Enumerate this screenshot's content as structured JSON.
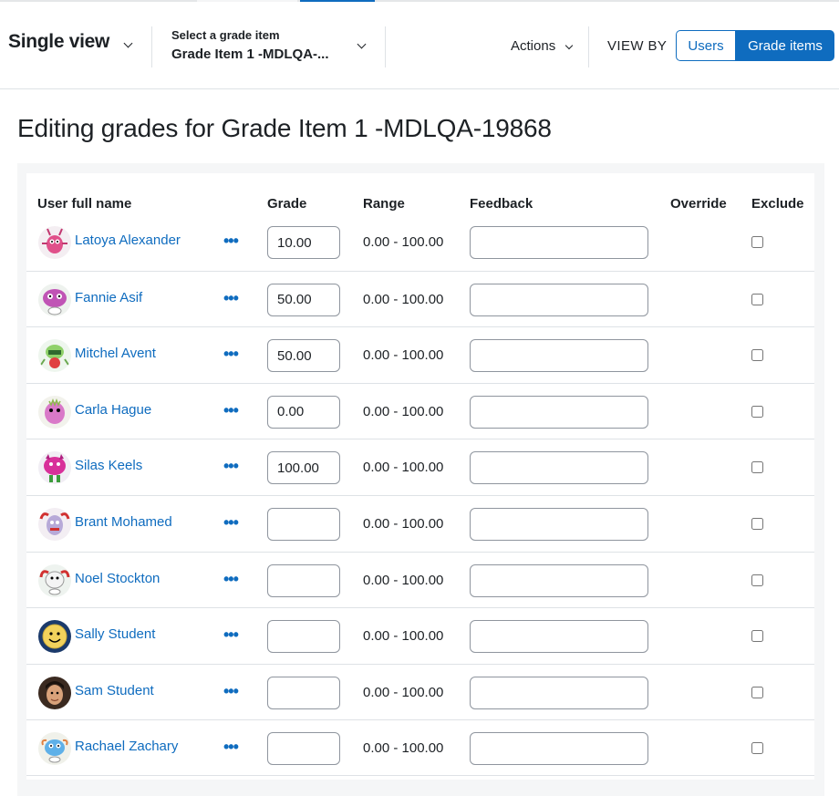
{
  "header": {
    "single_view": "Single view",
    "grade_item_label": "Select a grade item",
    "grade_item_value": "Grade Item 1 -MDLQA-...",
    "actions": "Actions",
    "view_by": "VIEW BY",
    "toggle_users": "Users",
    "toggle_grade_items": "Grade items"
  },
  "page_title": "Editing grades for Grade Item 1 -MDLQA-19868",
  "table": {
    "columns": {
      "user": "User full name",
      "grade": "Grade",
      "range": "Range",
      "feedback": "Feedback",
      "override": "Override",
      "exclude": "Exclude"
    },
    "rows": [
      {
        "name": "Latoya Alexander",
        "grade": "10.00",
        "range": "0.00 - 100.00",
        "avatar": "pink-monster-avatar"
      },
      {
        "name": "Fannie Asif",
        "grade": "50.00",
        "range": "0.00 - 100.00",
        "avatar": "purple-monster-avatar"
      },
      {
        "name": "Mitchel Avent",
        "grade": "50.00",
        "range": "0.00 - 100.00",
        "avatar": "green-monster-avatar"
      },
      {
        "name": "Carla Hague",
        "grade": "0.00",
        "range": "0.00 - 100.00",
        "avatar": "pink-blob-avatar"
      },
      {
        "name": "Silas Keels",
        "grade": "100.00",
        "range": "0.00 - 100.00",
        "avatar": "magenta-monster-avatar"
      },
      {
        "name": "Brant Mohamed",
        "grade": "",
        "range": "0.00 - 100.00",
        "avatar": "red-crab-avatar"
      },
      {
        "name": "Noel Stockton",
        "grade": "",
        "range": "0.00 - 100.00",
        "avatar": "white-crab-avatar"
      },
      {
        "name": "Sally Student",
        "grade": "",
        "range": "0.00 - 100.00",
        "avatar": "smiley-avatar"
      },
      {
        "name": "Sam Student",
        "grade": "",
        "range": "0.00 - 100.00",
        "avatar": "photo-avatar"
      },
      {
        "name": "Rachael Zachary",
        "grade": "",
        "range": "0.00 - 100.00",
        "avatar": "blue-monster-avatar"
      }
    ]
  },
  "colors": {
    "primary": "#0f6cbf",
    "text": "#1d2125",
    "border": "#dee2e6"
  }
}
